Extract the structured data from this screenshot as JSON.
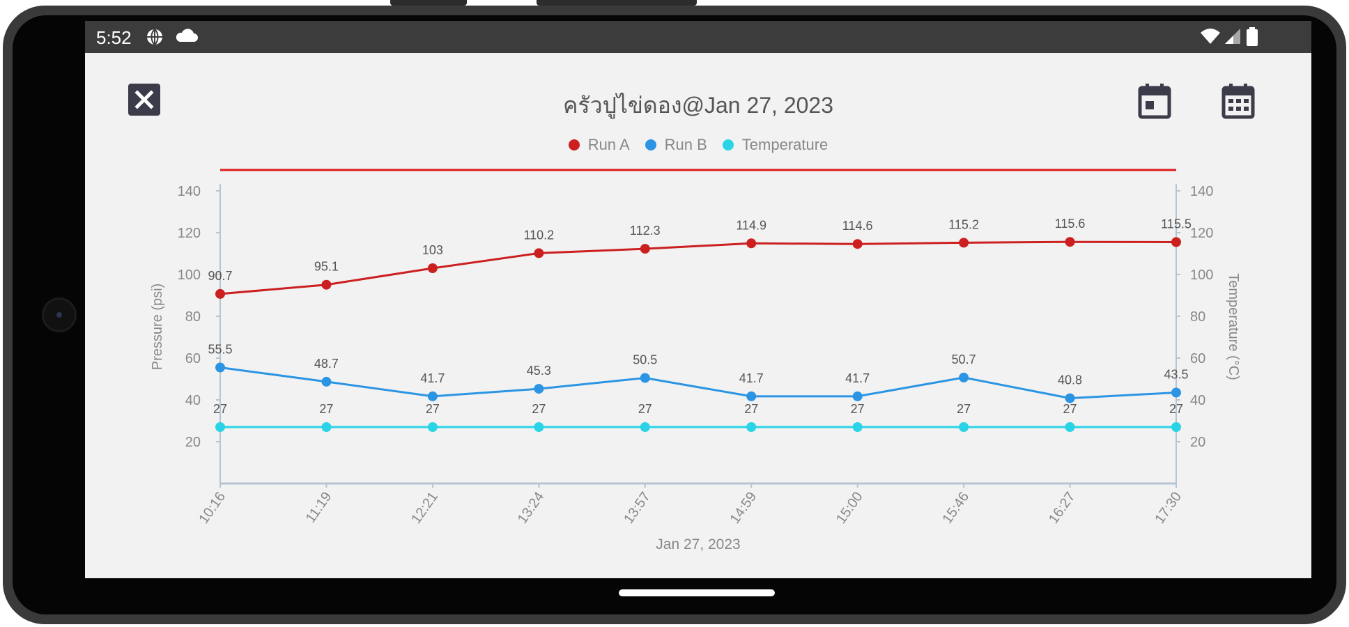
{
  "status_bar": {
    "time": "5:52"
  },
  "header": {
    "title": "ครัวปูไข่ดอง@Jan 27, 2023"
  },
  "icons": {
    "close": "close-icon",
    "calendar_day": "calendar-day-icon",
    "calendar_month": "calendar-month-icon"
  },
  "colors": {
    "run_a": "#cc1f1f",
    "run_b": "#2b95e3",
    "temperature": "#2ad4e6",
    "limit_line": "#dd1c1c",
    "axis": "#b7c4d2",
    "text": "#888888"
  },
  "chart_data": {
    "type": "line",
    "xlabel": "Jan 27, 2023",
    "ylabel_left": "Pressure (psi)",
    "ylabel_right": "Temperature (°C)",
    "categories": [
      "10:16",
      "11:19",
      "12:21",
      "13:24",
      "13:57",
      "14:59",
      "15:00",
      "15:46",
      "16:27",
      "17:30"
    ],
    "ylim_left": [
      0,
      150
    ],
    "ylim_right": [
      0,
      150
    ],
    "yticks_left": [
      20,
      40,
      60,
      80,
      100,
      120,
      140
    ],
    "yticks_right": [
      20,
      40,
      60,
      80,
      100,
      120,
      140
    ],
    "limit_line": 150,
    "legend_position": "top-center",
    "grid": false,
    "series": [
      {
        "name": "Run A",
        "axis": "left",
        "values": [
          90.7,
          95.1,
          103,
          110.2,
          112.3,
          114.9,
          114.6,
          115.2,
          115.6,
          115.5
        ]
      },
      {
        "name": "Run B",
        "axis": "left",
        "values": [
          55.5,
          48.7,
          41.7,
          45.3,
          50.5,
          41.7,
          41.7,
          50.7,
          40.8,
          43.5
        ]
      },
      {
        "name": "Temperature",
        "axis": "right",
        "values": [
          27,
          27,
          27,
          27,
          27,
          27,
          27,
          27,
          27,
          27
        ]
      }
    ]
  }
}
